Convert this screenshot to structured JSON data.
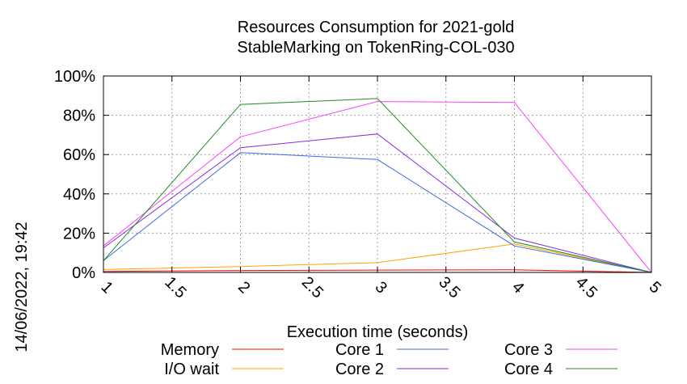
{
  "chart_data": {
    "type": "line",
    "title": "Resources Consumption for 2021-gold",
    "subtitle": "StableMarking on TokenRing-COL-030",
    "xlabel": "Execution time (seconds)",
    "ylabel": "",
    "xlim": [
      1,
      5
    ],
    "ylim": [
      0,
      100
    ],
    "x_ticks": [
      "1",
      "1.5",
      "2",
      "2.5",
      "3",
      "3.5",
      "4",
      "4.5",
      "5"
    ],
    "y_ticks": [
      "0%",
      "20%",
      "40%",
      "60%",
      "80%",
      "100%"
    ],
    "grid": true,
    "legend_position": "bottom",
    "timestamp": "14/06/2022, 19:42",
    "series": [
      {
        "name": "Memory",
        "color": "#ff0000",
        "x": [
          1,
          2,
          3,
          4,
          5
        ],
        "y": [
          0.5,
          1.0,
          1.2,
          1.3,
          0
        ]
      },
      {
        "name": "I/O wait",
        "color": "#ffa500",
        "x": [
          1,
          2,
          3,
          4,
          5
        ],
        "y": [
          1.5,
          3.0,
          5.0,
          14.5,
          0
        ]
      },
      {
        "name": "Core 1",
        "color": "#4169e1",
        "x": [
          1,
          2,
          3,
          4,
          5
        ],
        "y": [
          6,
          61,
          57.5,
          13.5,
          0
        ]
      },
      {
        "name": "Core 2",
        "color": "#8a2be2",
        "x": [
          1,
          2,
          3,
          4,
          5
        ],
        "y": [
          12.5,
          63.5,
          70.5,
          17.5,
          0
        ]
      },
      {
        "name": "Core 3",
        "color": "#ff40ff",
        "x": [
          1,
          2,
          3,
          4,
          5
        ],
        "y": [
          13.5,
          69,
          87,
          86.5,
          0
        ]
      },
      {
        "name": "Core 4",
        "color": "#228b22",
        "x": [
          1,
          2,
          3,
          4,
          5
        ],
        "y": [
          6,
          85.5,
          88.5,
          15.5,
          0
        ]
      }
    ]
  }
}
